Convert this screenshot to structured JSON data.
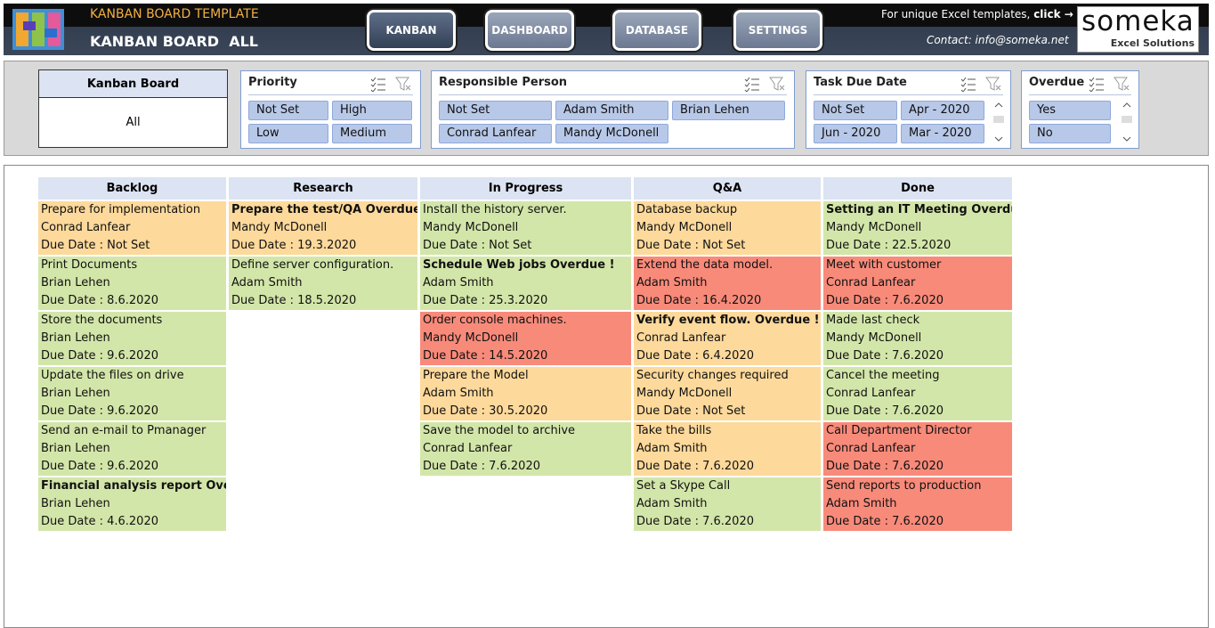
{
  "header": {
    "title": "KANBAN BOARD TEMPLATE",
    "board_label": "KANBAN BOARD",
    "board_filter": "ALL",
    "nav": [
      "KANBAN",
      "DASHBOARD",
      "DATABASE",
      "SETTINGS"
    ],
    "promo": "For unique Excel templates, ",
    "promo_link": "click →",
    "contact": "Contact: info@someka.net",
    "logo": "someka",
    "logo_sub": "Excel Solutions"
  },
  "filters": {
    "board": {
      "label": "Kanban Board",
      "value": "All"
    },
    "slicers": [
      {
        "title": "Priority",
        "items": [
          "Not Set",
          "High",
          "Low",
          "Medium"
        ]
      },
      {
        "title": "Responsible Person",
        "items": [
          "Not Set",
          "Adam Smith",
          "Brian Lehen",
          "Conrad Lanfear",
          "Mandy McDonell"
        ]
      },
      {
        "title": "Task Due Date",
        "items": [
          "Not Set",
          "Apr - 2020",
          "Jun - 2020",
          "Mar - 2020"
        ]
      },
      {
        "title": "Overdue",
        "items": [
          "Yes",
          "No"
        ]
      }
    ]
  },
  "board": {
    "columns": [
      {
        "name": "Backlog",
        "cards": [
          {
            "task": "Prepare for implementation",
            "person": "Conrad Lanfear",
            "due": "Due Date : Not Set",
            "color": "#fdd99b",
            "bold": false
          },
          {
            "task": "Print Documents",
            "person": "Brian Lehen",
            "due": "Due Date : 8.6.2020",
            "color": "#d3e6a9",
            "bold": false
          },
          {
            "task": "Store the documents",
            "person": "Brian Lehen",
            "due": "Due Date : 9.6.2020",
            "color": "#d3e6a9",
            "bold": false
          },
          {
            "task": "Update the files on drive",
            "person": "Brian Lehen",
            "due": "Due Date : 9.6.2020",
            "color": "#d3e6a9",
            "bold": false
          },
          {
            "task": "Send an e-mail to Pmanager",
            "person": "Brian Lehen",
            "due": "Due Date : 9.6.2020",
            "color": "#d3e6a9",
            "bold": false
          },
          {
            "task": "Financial analysis report Overdue",
            "person": "Brian Lehen",
            "due": "Due Date : 4.6.2020",
            "color": "#d3e6a9",
            "bold": true
          }
        ]
      },
      {
        "name": "Research",
        "cards": [
          {
            "task": "Prepare the test/QA Overdue !",
            "person": "Mandy McDonell",
            "due": "Due Date : 19.3.2020",
            "color": "#fdd99b",
            "bold": true
          },
          {
            "task": "Define server configuration.",
            "person": "Adam Smith",
            "due": "Due Date : 18.5.2020",
            "color": "#d3e6a9",
            "bold": false
          }
        ]
      },
      {
        "name": "In Progress",
        "cards": [
          {
            "task": "Install the history server.",
            "person": "Mandy McDonell",
            "due": "Due Date : Not Set",
            "color": "#d3e6a9",
            "bold": false
          },
          {
            "task": "Schedule Web jobs Overdue !",
            "person": "Adam Smith",
            "due": "Due Date : 25.3.2020",
            "color": "#d3e6a9",
            "bold": true
          },
          {
            "task": "Order console machines.",
            "person": "Mandy McDonell",
            "due": "Due Date : 14.5.2020",
            "color": "#f88a7a",
            "bold": false
          },
          {
            "task": "Prepare the Model",
            "person": "Adam Smith",
            "due": "Due Date : 30.5.2020",
            "color": "#fdd99b",
            "bold": false
          },
          {
            "task": "Save the model to archive",
            "person": "Conrad Lanfear",
            "due": "Due Date : 7.6.2020",
            "color": "#d3e6a9",
            "bold": false
          }
        ]
      },
      {
        "name": "Q&A",
        "cards": [
          {
            "task": "Database backup",
            "person": "Mandy McDonell",
            "due": "Due Date : Not Set",
            "color": "#fdd99b",
            "bold": false
          },
          {
            "task": "Extend the data model.",
            "person": "Adam Smith",
            "due": "Due Date : 16.4.2020",
            "color": "#f88a7a",
            "bold": false
          },
          {
            "task": "Verify event flow. Overdue !",
            "person": "Conrad Lanfear",
            "due": "Due Date : 6.4.2020",
            "color": "#fdd99b",
            "bold": true
          },
          {
            "task": "Security changes required",
            "person": "Mandy McDonell",
            "due": "Due Date : Not Set",
            "color": "#fdd99b",
            "bold": false
          },
          {
            "task": "Take the bills",
            "person": "Adam Smith",
            "due": "Due Date : 7.6.2020",
            "color": "#fdd99b",
            "bold": false
          },
          {
            "task": "Set a Skype Call",
            "person": "Adam Smith",
            "due": "Due Date : 7.6.2020",
            "color": "#d3e6a9",
            "bold": false
          }
        ]
      },
      {
        "name": "Done",
        "cards": [
          {
            "task": "Setting an IT Meeting Overdue !",
            "person": "Mandy McDonell",
            "due": "Due Date : 22.5.2020",
            "color": "#d3e6a9",
            "bold": true
          },
          {
            "task": "Meet with customer",
            "person": "Conrad Lanfear",
            "due": "Due Date : 7.6.2020",
            "color": "#f88a7a",
            "bold": false
          },
          {
            "task": "Made last check",
            "person": "Mandy McDonell",
            "due": "Due Date : 7.6.2020",
            "color": "#d3e6a9",
            "bold": false
          },
          {
            "task": "Cancel the meeting",
            "person": "Conrad Lanfear",
            "due": "Due Date : 7.6.2020",
            "color": "#d3e6a9",
            "bold": false
          },
          {
            "task": "Call Department Director",
            "person": "Conrad Lanfear",
            "due": "Due Date : 7.6.2020",
            "color": "#f88a7a",
            "bold": false
          },
          {
            "task": "Send reports to production",
            "person": "Adam Smith",
            "due": "Due Date : 7.6.2020",
            "color": "#f88a7a",
            "bold": false
          }
        ]
      }
    ]
  }
}
